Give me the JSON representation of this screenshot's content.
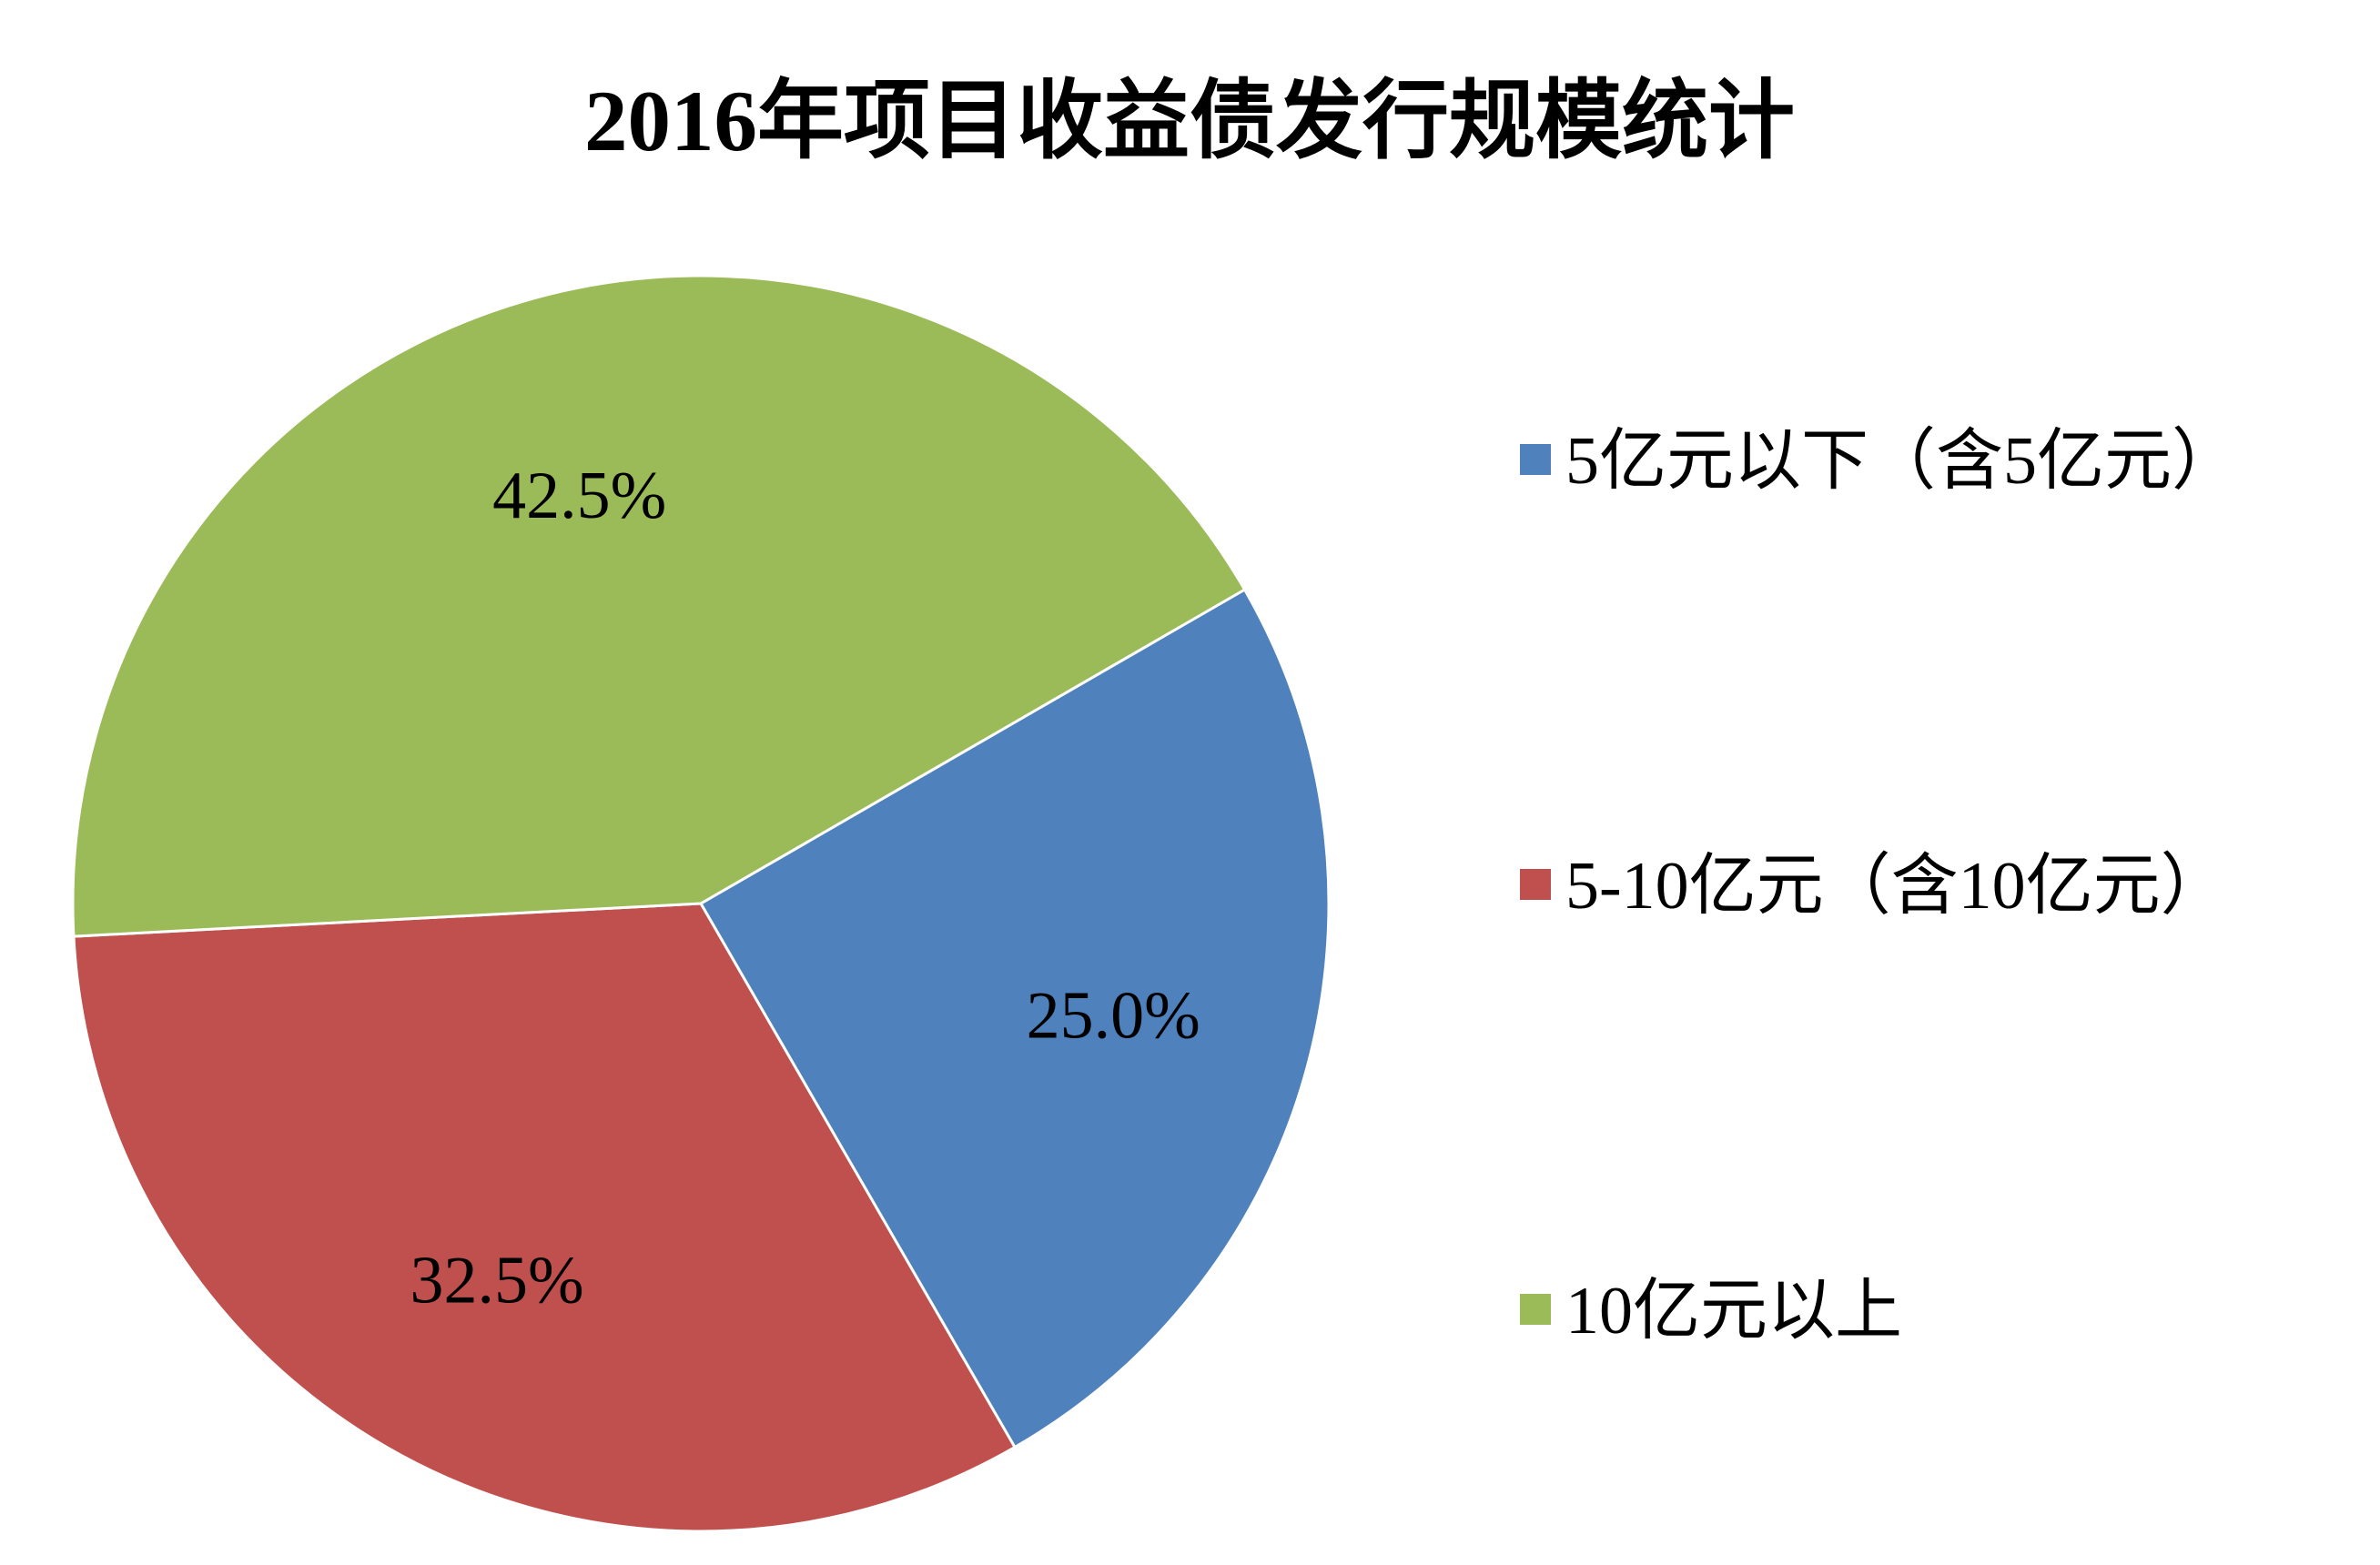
{
  "chart_data": {
    "type": "pie",
    "title": "2016年项目收益债发行规模统计",
    "categories": [
      "5亿元以下（含5亿元）",
      "5-10亿元（含10亿元）",
      "10亿元以上"
    ],
    "values": [
      25.0,
      32.5,
      42.5
    ],
    "data_labels": [
      "25.0%",
      "32.5%",
      "42.5%"
    ],
    "colors": [
      "#4F81BD",
      "#C0504D",
      "#9BBB59"
    ],
    "start_angle_deg": 60,
    "direction": "clockwise",
    "legend_position": "right"
  }
}
